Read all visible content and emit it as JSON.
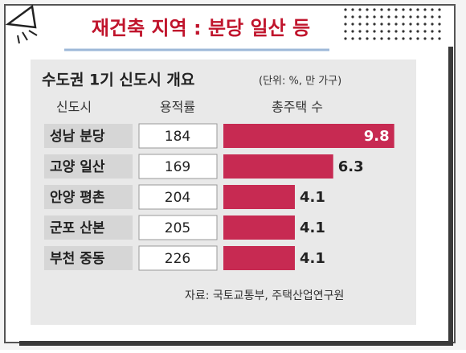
{
  "chart_data": {
    "type": "bar",
    "slide_title": "재건축 지역 : 분당 일산 등",
    "title": "수도권 1기 신도시 개요",
    "unit": "(단위: %, 만 가구)",
    "column_headers": [
      "신도시",
      "용적률",
      "총주택 수"
    ],
    "categories": [
      "성남 분당",
      "고양 일산",
      "안양 평촌",
      "군포 산본",
      "부천 중동"
    ],
    "floor_area_ratio": [
      184,
      169,
      204,
      205,
      226
    ],
    "values": [
      9.8,
      6.3,
      4.1,
      4.1,
      4.1
    ],
    "color": "#c72a52",
    "source": "자료: 국토교통부, 주택산업연구원"
  }
}
